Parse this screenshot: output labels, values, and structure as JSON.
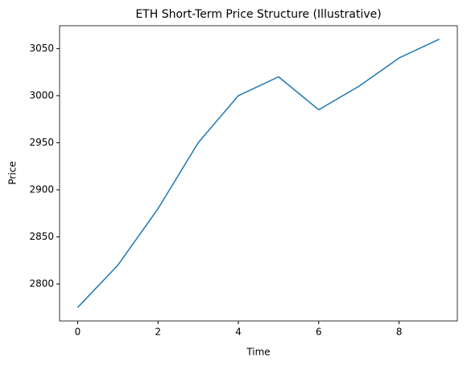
{
  "chart_data": {
    "type": "line",
    "title": "ETH Short-Term Price Structure (Illustrative)",
    "x_label": "Time",
    "y_label": "Price",
    "x": [
      0,
      1,
      2,
      3,
      4,
      5,
      6,
      7,
      8,
      9
    ],
    "series": [
      {
        "name": "ETH",
        "color": "#1f77b4",
        "values": [
          2775,
          2820,
          2880,
          2950,
          3000,
          3020,
          2985,
          3010,
          3040,
          3060
        ]
      }
    ],
    "xlim": [
      -0.45,
      9.45
    ],
    "xticks": [
      0,
      2,
      4,
      6,
      8
    ],
    "ylim": [
      2760.75,
      3074.25
    ],
    "yticks": [
      2800,
      2850,
      2900,
      2950,
      3000,
      3050
    ],
    "grid": false
  }
}
